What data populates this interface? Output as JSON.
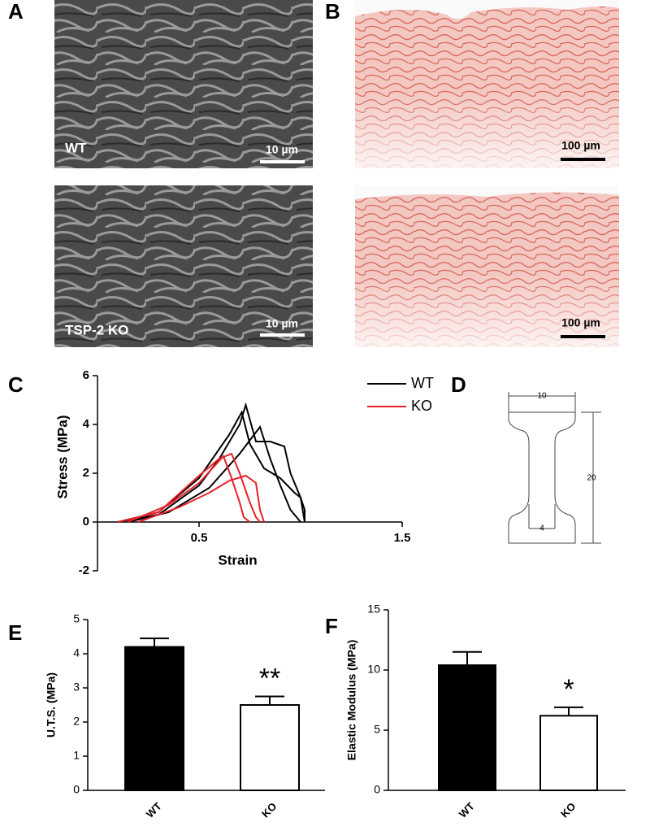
{
  "panel_labels": [
    "A",
    "B",
    "C",
    "D",
    "E",
    "F"
  ],
  "images": {
    "A": [
      {
        "label": "WT",
        "scale": "10 µm"
      },
      {
        "label": "TSP-2 KO",
        "scale": "10 µm"
      }
    ],
    "B": [
      {
        "scale": "100 µm"
      },
      {
        "scale": "100 µm"
      }
    ]
  },
  "diagram": {
    "width": "10",
    "length": "20",
    "gauge": "4"
  },
  "chart_data": [
    {
      "type": "line",
      "xlabel": "Strain",
      "ylabel": "Stress (MPa)",
      "xlim": [
        0,
        1.5
      ],
      "xticks": [
        0.5,
        1.5
      ],
      "ylim": [
        -2,
        6
      ],
      "yticks": [
        -2,
        0,
        2,
        4,
        6
      ],
      "series": [
        {
          "name": "WT",
          "color": "#000000",
          "curves": [
            {
              "x": [
                0.1,
                0.3,
                0.5,
                0.6,
                0.7,
                0.73,
                0.78,
                0.85,
                0.92,
                0.95,
                1.0,
                1.02,
                1.02
              ],
              "values": [
                0,
                0.3,
                1.5,
                2.6,
                4.0,
                4.8,
                3.3,
                3.3,
                3.1,
                2.0,
                1.0,
                0.5,
                0
              ]
            },
            {
              "x": [
                0.1,
                0.3,
                0.5,
                0.65,
                0.71,
                0.75,
                0.82,
                0.9,
                0.97,
                1.0,
                1.02
              ],
              "values": [
                0,
                0.4,
                1.8,
                3.6,
                4.5,
                3.2,
                2.2,
                1.8,
                1.2,
                1.0,
                0
              ]
            },
            {
              "x": [
                0.15,
                0.35,
                0.55,
                0.7,
                0.8,
                0.85,
                0.9,
                0.95,
                1.0
              ],
              "values": [
                0,
                0.4,
                1.4,
                2.8,
                3.9,
                2.6,
                1.5,
                0.5,
                0
              ]
            }
          ]
        },
        {
          "name": "KO",
          "color": "#e8202a",
          "curves": [
            {
              "x": [
                0.1,
                0.3,
                0.5,
                0.6,
                0.66,
                0.7,
                0.75,
                0.78,
                0.8
              ],
              "values": [
                0,
                0.4,
                1.9,
                2.6,
                2.8,
                2.0,
                0.8,
                0.2,
                0
              ]
            },
            {
              "x": [
                0.15,
                0.35,
                0.5,
                0.62,
                0.66,
                0.7,
                0.72,
                0.75
              ],
              "values": [
                0,
                0.7,
                1.6,
                2.7,
                1.8,
                0.8,
                0.2,
                0
              ]
            },
            {
              "x": [
                0.2,
                0.4,
                0.55,
                0.65,
                0.73,
                0.78,
                0.8,
                0.82
              ],
              "values": [
                0,
                0.6,
                1.2,
                1.7,
                1.9,
                1.6,
                0.5,
                0
              ]
            }
          ]
        }
      ]
    },
    {
      "type": "bar",
      "ylabel": "U.T.S. (MPa)",
      "categories": [
        "WT",
        "KO"
      ],
      "values": [
        4.2,
        2.5
      ],
      "errors": [
        0.25,
        0.25
      ],
      "colors": [
        "#000000",
        "#ffffff"
      ],
      "ylim": [
        0,
        5
      ],
      "yticks": [
        0,
        1,
        2,
        3,
        4,
        5
      ],
      "annotation": "**"
    },
    {
      "type": "bar",
      "ylabel": "Elastic Modulus (MPa)",
      "categories": [
        "WT",
        "KO"
      ],
      "values": [
        10.4,
        6.2
      ],
      "errors": [
        1.1,
        0.7
      ],
      "colors": [
        "#000000",
        "#ffffff"
      ],
      "ylim": [
        0,
        15
      ],
      "yticks": [
        0,
        5,
        10,
        15
      ],
      "annotation": "*"
    }
  ]
}
